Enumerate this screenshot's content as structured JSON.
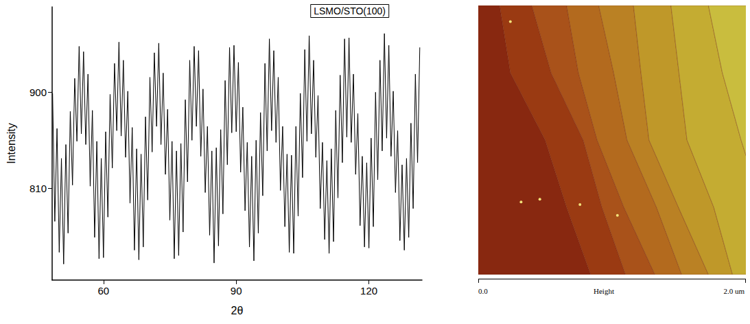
{
  "chart_data": {
    "type": "line",
    "annotation": "LSMO/STO(100)",
    "x_label": "2θ",
    "y_label": "Intensity",
    "color": "#000000",
    "marker": "none",
    "line_style": "solid",
    "grid": false,
    "xlim": [
      48.4,
      132
    ],
    "xticks": [
      60,
      90,
      120
    ],
    "ylim": [
      724,
      980
    ],
    "yticks": [
      810,
      900
    ],
    "x": [
      48.5,
      49,
      49.5,
      50,
      50.5,
      51,
      51.5,
      52,
      52.5,
      53,
      53.5,
      54,
      54.5,
      55,
      55.5,
      56,
      56.5,
      57,
      57.5,
      58,
      58.5,
      59,
      59.5,
      60,
      60.5,
      61,
      61.5,
      62,
      62.5,
      63,
      63.5,
      64,
      64.5,
      65,
      65.5,
      66,
      66.5,
      67,
      67.5,
      68,
      68.5,
      69,
      69.5,
      70,
      70.5,
      71,
      71.5,
      72,
      72.5,
      73,
      73.5,
      74,
      74.5,
      75,
      75.5,
      76,
      76.5,
      77,
      77.5,
      78,
      78.5,
      79,
      79.5,
      80,
      80.5,
      81,
      81.5,
      82,
      82.5,
      83,
      83.5,
      84,
      84.5,
      85,
      85.5,
      86,
      86.5,
      87,
      87.5,
      88,
      88.5,
      89,
      89.5,
      90,
      90.5,
      91,
      91.5,
      92,
      92.5,
      93,
      93.5,
      94,
      94.5,
      95,
      95.5,
      96,
      96.5,
      97,
      97.5,
      98,
      98.5,
      99,
      99.5,
      100,
      100.5,
      101,
      101.5,
      102,
      102.5,
      103,
      103.5,
      104,
      104.5,
      105,
      105.5,
      106,
      106.5,
      107,
      107.5,
      108,
      108.5,
      109,
      109.5,
      110,
      110.5,
      111,
      111.5,
      112,
      112.5,
      113,
      113.5,
      114,
      114.5,
      115,
      115.5,
      116,
      116.5,
      117,
      117.5,
      118,
      118.5,
      119,
      119.5,
      120,
      120.5,
      121,
      121.5,
      122,
      122.5,
      123,
      123.5,
      124,
      124.5,
      125,
      125.5,
      126,
      126.5,
      127,
      127.5,
      128,
      128.5,
      129,
      129.5,
      130,
      130.5,
      131,
      131.5
    ],
    "values": [
      899,
      779,
      866,
      750,
      838,
      739,
      851,
      768,
      882,
      813,
      913,
      854,
      943,
      861,
      938,
      851,
      917,
      812,
      883,
      764,
      854,
      744,
      838,
      745,
      863,
      783,
      898,
      829,
      927,
      864,
      947,
      859,
      930,
      839,
      901,
      796,
      867,
      752,
      847,
      743,
      842,
      755,
      877,
      799,
      914,
      844,
      937,
      868,
      946,
      851,
      918,
      823,
      884,
      780,
      854,
      744,
      845,
      747,
      852,
      769,
      893,
      816,
      930,
      855,
      943,
      868,
      939,
      840,
      903,
      806,
      868,
      766,
      845,
      740,
      848,
      756,
      865,
      786,
      911,
      832,
      942,
      862,
      944,
      863,
      928,
      825,
      886,
      789,
      853,
      755,
      840,
      742,
      855,
      768,
      881,
      803,
      927,
      845,
      950,
      864,
      939,
      853,
      914,
      808,
      868,
      774,
      842,
      750,
      841,
      749,
      868,
      784,
      899,
      820,
      940,
      854,
      953,
      861,
      930,
      839,
      897,
      791,
      853,
      762,
      836,
      749,
      847,
      760,
      883,
      801,
      916,
      834,
      950,
      858,
      951,
      853,
      917,
      823,
      880,
      775,
      840,
      755,
      834,
      754,
      857,
      774,
      900,
      818,
      930,
      845,
      955,
      857,
      944,
      840,
      901,
      806,
      864,
      761,
      832,
      752,
      838,
      764,
      871,
      791,
      917,
      834,
      942
    ]
  },
  "afm_image": {
    "scale_bar": {
      "start": "0.0",
      "label": "Height",
      "end": "2.0 um"
    }
  }
}
